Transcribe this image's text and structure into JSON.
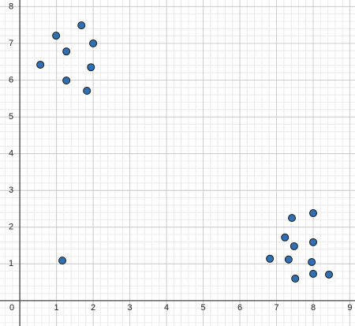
{
  "chart_data": {
    "type": "scatter",
    "x": [
      0.99,
      1.68,
      1.27,
      2.0,
      0.56,
      1.94,
      1.27,
      1.83,
      1.16,
      8.0,
      7.42,
      7.23,
      7.48,
      8.0,
      6.82,
      7.33,
      7.96,
      7.51,
      8.0,
      8.43
    ],
    "values": [
      7.21,
      7.49,
      6.78,
      7.0,
      6.42,
      6.35,
      5.99,
      5.71,
      1.09,
      2.38,
      2.25,
      1.72,
      1.48,
      1.59,
      1.14,
      1.12,
      1.05,
      0.6,
      0.73,
      0.71
    ],
    "color": "#2d70b3",
    "xlim": [
      -0.54,
      9.14
    ],
    "ylim": [
      -0.69,
      8.18
    ],
    "xticks": [
      0,
      1,
      2,
      3,
      4,
      5,
      6,
      7,
      8,
      9
    ],
    "yticks": [
      1,
      2,
      3,
      4,
      5,
      6,
      7,
      8
    ],
    "grid": true
  }
}
